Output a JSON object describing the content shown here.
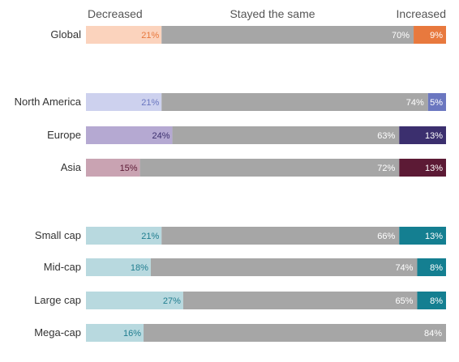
{
  "chart_data": {
    "type": "bar",
    "orientation": "horizontal",
    "stacked": true,
    "normalized_to": 100,
    "headers": [
      "Decreased",
      "Stayed the same",
      "Increased"
    ],
    "categories": [
      "Global",
      "North America",
      "Europe",
      "Asia",
      "Small cap",
      "Mid-cap",
      "Large cap",
      "Mega-cap"
    ],
    "groups": [
      [
        "Global"
      ],
      [
        "North America",
        "Europe",
        "Asia"
      ],
      [
        "Small cap",
        "Mid-cap",
        "Large cap",
        "Mega-cap"
      ]
    ],
    "series": [
      {
        "key": "decreased",
        "values": [
          21,
          21,
          24,
          15,
          21,
          18,
          27,
          16
        ]
      },
      {
        "key": "same",
        "values": [
          70,
          74,
          63,
          72,
          66,
          74,
          65,
          84
        ]
      },
      {
        "key": "increased",
        "values": [
          9,
          5,
          13,
          13,
          13,
          8,
          8,
          0
        ]
      }
    ],
    "data_labels": {
      "decreased": [
        "21%",
        "21%",
        "24%",
        "15%",
        "21%",
        "18%",
        "27%",
        "16%"
      ],
      "same": [
        "70%",
        "74%",
        "63%",
        "72%",
        "66%",
        "74%",
        "65%",
        "84%"
      ],
      "increased": [
        "9%",
        "5%",
        "13%",
        "13%",
        "13%",
        "8%",
        "8%",
        ""
      ]
    },
    "colors": {
      "same": "#a6a6a6",
      "decreased": [
        "#fbd3bd",
        "#cdd1ee",
        "#b5a9d2",
        "#c9a3b2",
        "#b8d9df",
        "#b8d9df",
        "#b8d9df",
        "#b8d9df"
      ],
      "decreased_text": [
        "#e8793e",
        "#6b77c0",
        "#3b2f6e",
        "#5c1a35",
        "#1f7d8f",
        "#1f7d8f",
        "#1f7d8f",
        "#1f7d8f"
      ],
      "increased": [
        "#e8793e",
        "#6b77c0",
        "#3b2f6e",
        "#5c1a35",
        "#147f91",
        "#147f91",
        "#147f91",
        "#147f91"
      ]
    },
    "legend": "none",
    "grid": false
  }
}
